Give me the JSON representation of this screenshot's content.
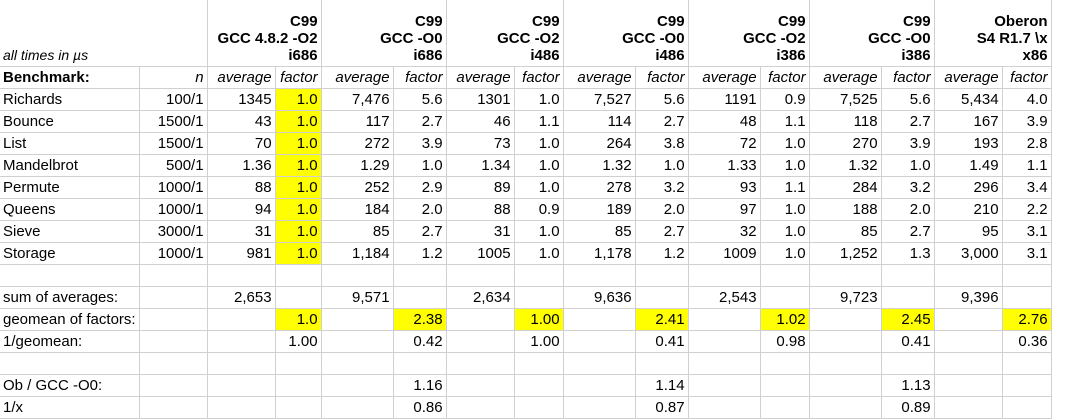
{
  "header": {
    "caption": "all times in µs",
    "configs": [
      [
        "C99",
        "GCC 4.8.2 -O2",
        "i686"
      ],
      [
        "C99",
        "GCC -O0",
        "i686"
      ],
      [
        "C99",
        "GCC -O2",
        "i486"
      ],
      [
        "C99",
        "GCC -O0",
        "i486"
      ],
      [
        "C99",
        "GCC -O2",
        "i386"
      ],
      [
        "C99",
        "GCC -O0",
        "i386"
      ],
      [
        "Oberon",
        "S4 R1.7 \\x",
        "x86"
      ]
    ]
  },
  "subheader": {
    "benchmark": "Benchmark:",
    "n": "n",
    "average": "average",
    "factor": "factor"
  },
  "rows": [
    {
      "name": "Richards",
      "n": "100/1",
      "cells": [
        "1345",
        "1.0",
        "7,476",
        "5.6",
        "1301",
        "1.0",
        "7,527",
        "5.6",
        "1191",
        "0.9",
        "7,525",
        "5.6",
        "5,434",
        "4.0"
      ]
    },
    {
      "name": "Bounce",
      "n": "1500/1",
      "cells": [
        "43",
        "1.0",
        "117",
        "2.7",
        "46",
        "1.1",
        "114",
        "2.7",
        "48",
        "1.1",
        "118",
        "2.7",
        "167",
        "3.9"
      ]
    },
    {
      "name": "List",
      "n": "1500/1",
      "cells": [
        "70",
        "1.0",
        "272",
        "3.9",
        "73",
        "1.0",
        "264",
        "3.8",
        "72",
        "1.0",
        "270",
        "3.9",
        "193",
        "2.8"
      ]
    },
    {
      "name": "Mandelbrot",
      "n": "500/1",
      "cells": [
        "1.36",
        "1.0",
        "1.29",
        "1.0",
        "1.34",
        "1.0",
        "1.32",
        "1.0",
        "1.33",
        "1.0",
        "1.32",
        "1.0",
        "1.49",
        "1.1"
      ]
    },
    {
      "name": "Permute",
      "n": "1000/1",
      "cells": [
        "88",
        "1.0",
        "252",
        "2.9",
        "89",
        "1.0",
        "278",
        "3.2",
        "93",
        "1.1",
        "284",
        "3.2",
        "296",
        "3.4"
      ]
    },
    {
      "name": "Queens",
      "n": "1000/1",
      "cells": [
        "94",
        "1.0",
        "184",
        "2.0",
        "88",
        "0.9",
        "189",
        "2.0",
        "97",
        "1.0",
        "188",
        "2.0",
        "210",
        "2.2"
      ]
    },
    {
      "name": "Sieve",
      "n": "3000/1",
      "cells": [
        "31",
        "1.0",
        "85",
        "2.7",
        "31",
        "1.0",
        "85",
        "2.7",
        "32",
        "1.0",
        "85",
        "2.7",
        "95",
        "3.1"
      ]
    },
    {
      "name": "Storage",
      "n": "1000/1",
      "cells": [
        "981",
        "1.0",
        "1,184",
        "1.2",
        "1005",
        "1.0",
        "1,178",
        "1.2",
        "1009",
        "1.0",
        "1,252",
        "1.3",
        "3,000",
        "3.1"
      ]
    }
  ],
  "summary": {
    "sum_label": "sum of averages:",
    "sums": [
      "2,653",
      "9,571",
      "2,634",
      "9,636",
      "2,543",
      "9,723",
      "9,396"
    ],
    "geomean_label": "geomean of factors:",
    "geomeans": [
      "1.0",
      "2.38",
      "1.00",
      "2.41",
      "1.02",
      "2.45",
      "2.76"
    ],
    "inv_label": "1/geomean:",
    "invs": [
      "1.00",
      "0.42",
      "1.00",
      "0.41",
      "0.98",
      "0.41",
      "0.36"
    ]
  },
  "oberon": {
    "ratio_label": "Ob / GCC -O0:",
    "ratios": [
      "1.16",
      "1.14",
      "1.13"
    ],
    "inv_label": "1/x",
    "invs": [
      "0.86",
      "0.87",
      "0.89"
    ]
  },
  "colors": {
    "highlight": "#ffff00",
    "grid": "#d0d0d0"
  }
}
